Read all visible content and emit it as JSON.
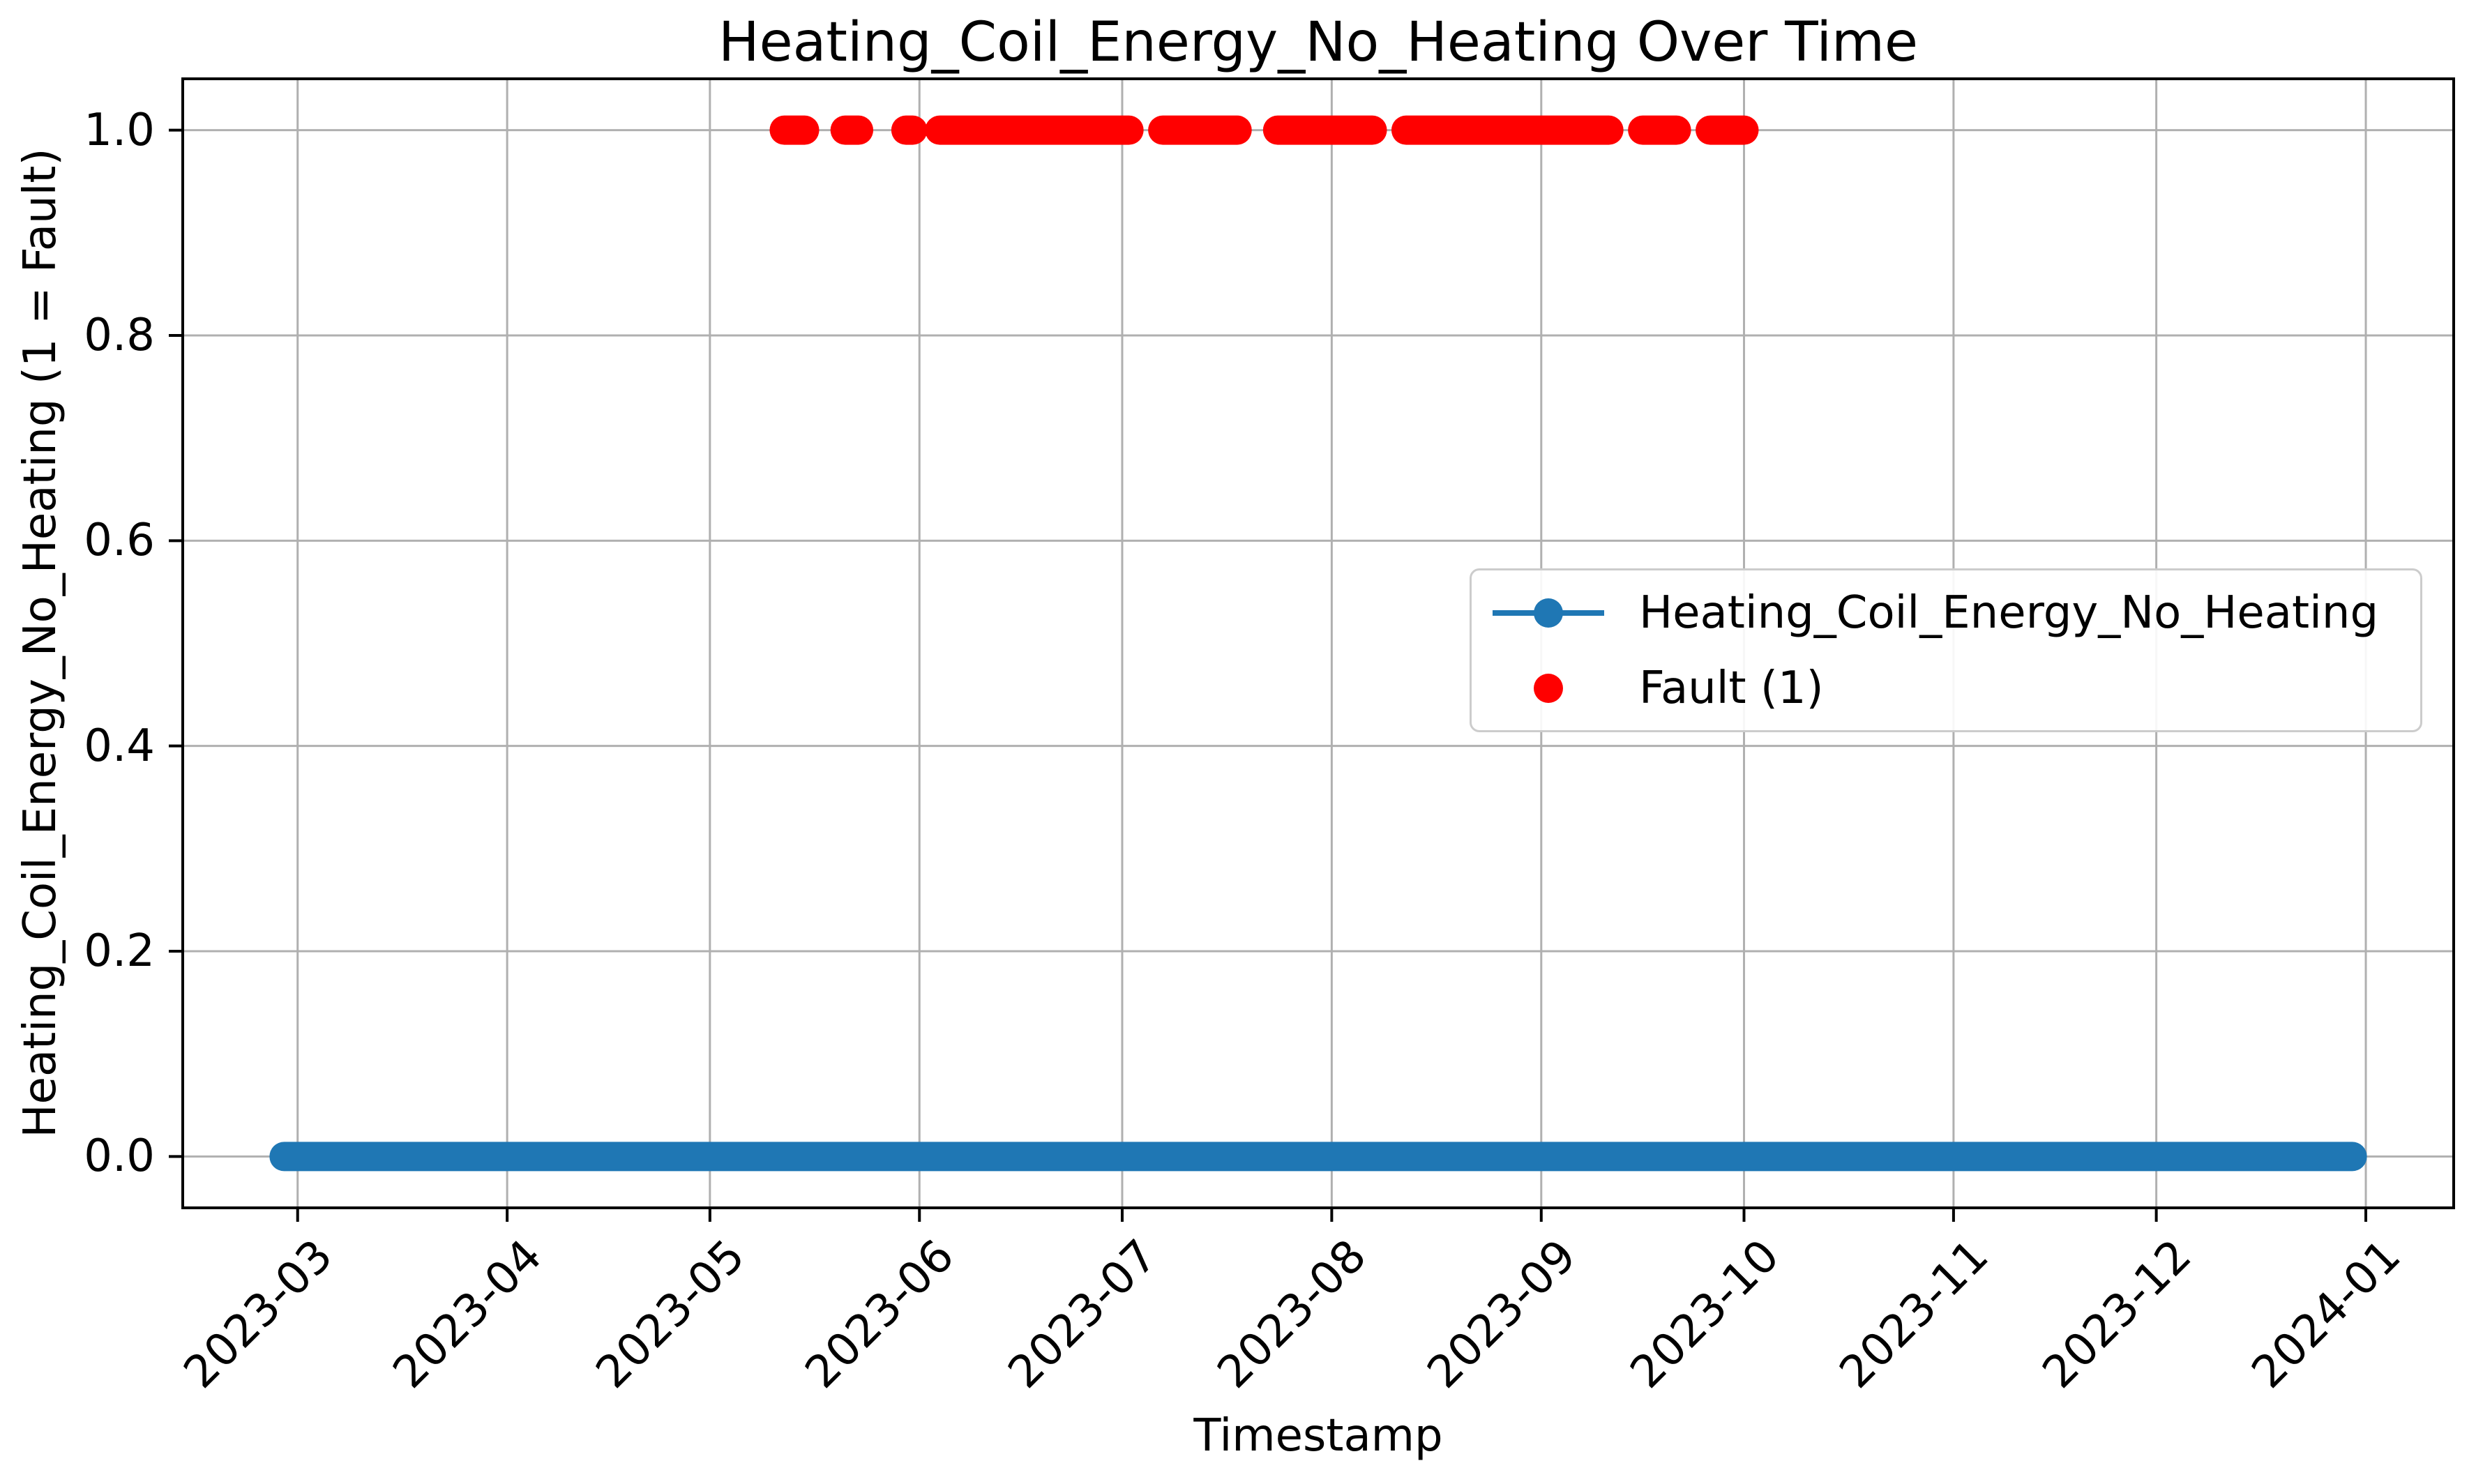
{
  "chart_data": {
    "type": "line",
    "title": "Heating_Coil_Energy_No_Heating Over Time",
    "xlabel": "Timestamp",
    "ylabel": "Heating_Coil_Energy_No_Heating (1 = Fault)",
    "grid": true,
    "ylim": [
      -0.05,
      1.05
    ],
    "yticks": [
      {
        "label": "0.0",
        "value": 0.0
      },
      {
        "label": "0.2",
        "value": 0.2
      },
      {
        "label": "0.4",
        "value": 0.4
      },
      {
        "label": "0.6",
        "value": 0.6
      },
      {
        "label": "0.8",
        "value": 0.8
      },
      {
        "label": "1.0",
        "value": 1.0
      }
    ],
    "xlim": [
      "2023-02-12",
      "2024-01-14"
    ],
    "xticks": [
      {
        "label": "2023-03",
        "date": "2023-03-01"
      },
      {
        "label": "2023-04",
        "date": "2023-04-01"
      },
      {
        "label": "2023-05",
        "date": "2023-05-01"
      },
      {
        "label": "2023-06",
        "date": "2023-06-01"
      },
      {
        "label": "2023-07",
        "date": "2023-07-01"
      },
      {
        "label": "2023-08",
        "date": "2023-08-01"
      },
      {
        "label": "2023-09",
        "date": "2023-09-01"
      },
      {
        "label": "2023-10",
        "date": "2023-10-01"
      },
      {
        "label": "2023-11",
        "date": "2023-11-01"
      },
      {
        "label": "2023-12",
        "date": "2023-12-01"
      },
      {
        "label": "2024-01",
        "date": "2024-01-01"
      }
    ],
    "series": [
      {
        "name": "Heating_Coil_Energy_No_Heating",
        "type": "line",
        "color": "#1f77b4",
        "marker": "circle",
        "constant_value": 0.0,
        "span": [
          "2023-02-27",
          "2023-12-30"
        ]
      },
      {
        "name": "Fault (1)",
        "type": "scatter",
        "color": "#ff0000",
        "marker": "circle",
        "constant_value": 1.0,
        "intervals": [
          [
            "2023-05-12",
            "2023-05-15"
          ],
          [
            "2023-05-21",
            "2023-05-23"
          ],
          [
            "2023-05-30",
            "2023-05-31"
          ],
          [
            "2023-06-04",
            "2023-07-02"
          ],
          [
            "2023-07-07",
            "2023-07-18"
          ],
          [
            "2023-07-24",
            "2023-08-07"
          ],
          [
            "2023-08-12",
            "2023-09-11"
          ],
          [
            "2023-09-16",
            "2023-09-21"
          ],
          [
            "2023-09-26",
            "2023-10-01"
          ]
        ]
      }
    ],
    "legend": {
      "position": "center right",
      "entries": [
        {
          "label": "Heating_Coil_Energy_No_Heating",
          "marker": "line-dot",
          "color": "#1f77b4"
        },
        {
          "label": "Fault (1)",
          "marker": "dot",
          "color": "#ff0000"
        }
      ]
    }
  },
  "colors": {
    "series_line": "#1f77b4",
    "fault": "#ff0000",
    "grid": "#b0b0b0",
    "axis": "#000000",
    "legend_border": "#cccccc",
    "background": "#ffffff"
  }
}
